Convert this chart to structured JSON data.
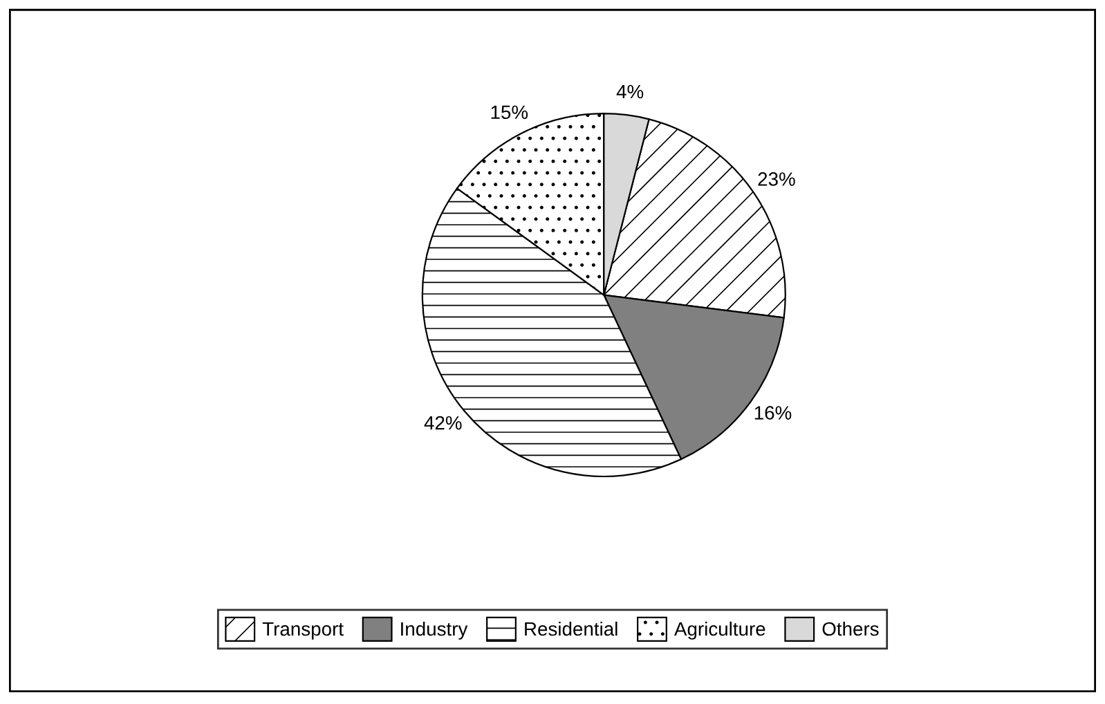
{
  "chart_data": {
    "type": "pie",
    "categories": [
      "Transport",
      "Industry",
      "Residential",
      "Agriculture",
      "Others"
    ],
    "values": [
      23,
      16,
      42,
      15,
      4
    ],
    "value_labels": [
      "23%",
      "16%",
      "42%",
      "15%",
      "4%"
    ],
    "colors": [
      "#ffffff",
      "#808080",
      "#ffffff",
      "#ffffff",
      "#d9d9d9"
    ],
    "legend": "bottom"
  }
}
